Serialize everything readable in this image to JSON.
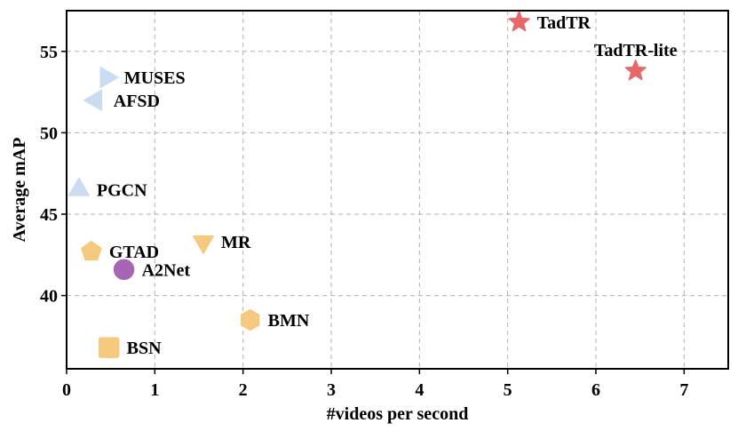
{
  "chart_data": {
    "type": "scatter",
    "title": "",
    "xlabel": "#videos per second",
    "ylabel": "Average mAP",
    "xlim": [
      0,
      7.5
    ],
    "ylim": [
      35.5,
      57.5
    ],
    "xticks": [
      0,
      1,
      2,
      3,
      4,
      5,
      6,
      7
    ],
    "yticks": [
      40,
      45,
      50,
      55
    ],
    "grid": true,
    "legend": "none",
    "points": [
      {
        "name": "TadTR",
        "x": 5.13,
        "y": 56.8,
        "marker": "star",
        "color": "#e8676b",
        "label_position": "right"
      },
      {
        "name": "TadTR-lite",
        "x": 6.45,
        "y": 53.8,
        "marker": "star",
        "color": "#e8676b",
        "label_position": "above"
      },
      {
        "name": "MUSES",
        "x": 0.45,
        "y": 53.4,
        "marker": "triangle-right",
        "color": "#c9dcf0",
        "label_position": "right"
      },
      {
        "name": "AFSD",
        "x": 0.33,
        "y": 52.0,
        "marker": "triangle-left",
        "color": "#c9dcf0",
        "label_position": "right"
      },
      {
        "name": "PGCN",
        "x": 0.14,
        "y": 46.5,
        "marker": "triangle-up",
        "color": "#c9dcf0",
        "label_position": "right"
      },
      {
        "name": "MR",
        "x": 1.55,
        "y": 43.3,
        "marker": "triangle-down",
        "color": "#f5c97e",
        "label_position": "right"
      },
      {
        "name": "GTAD",
        "x": 0.28,
        "y": 42.7,
        "marker": "pentagon",
        "color": "#f5c97e",
        "label_position": "right"
      },
      {
        "name": "A2Net",
        "x": 0.65,
        "y": 41.6,
        "marker": "circle",
        "color": "#a766b5",
        "label_position": "right"
      },
      {
        "name": "BMN",
        "x": 2.08,
        "y": 38.5,
        "marker": "hexagon",
        "color": "#f5c97e",
        "label_position": "right"
      },
      {
        "name": "BSN",
        "x": 0.48,
        "y": 36.8,
        "marker": "square",
        "color": "#f5c97e",
        "label_position": "right"
      }
    ]
  }
}
